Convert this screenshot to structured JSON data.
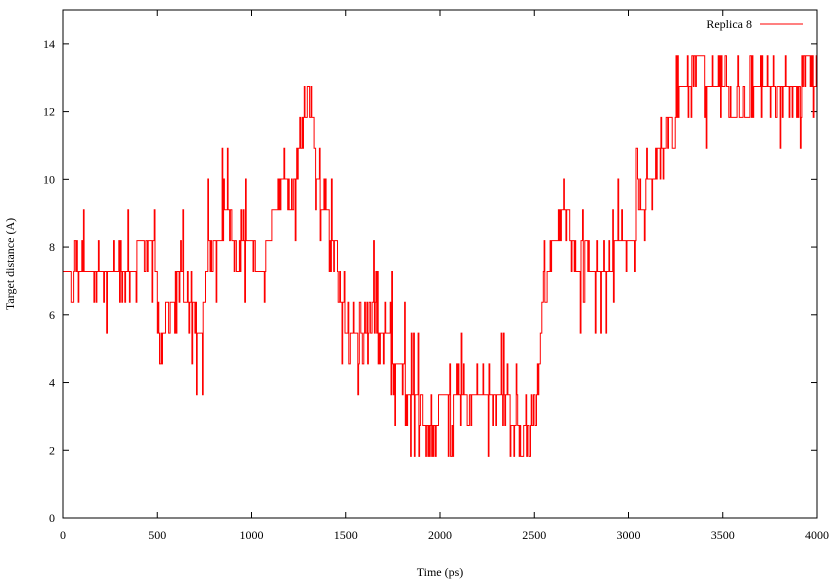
{
  "chart_data": {
    "type": "line",
    "xlabel": "Time (ps)",
    "ylabel": "Target distance (A)",
    "xlim": [
      0,
      4000
    ],
    "ylim": [
      0,
      15
    ],
    "xticks": [
      0,
      500,
      1000,
      1500,
      2000,
      2500,
      3000,
      3500,
      4000
    ],
    "yticks": [
      0,
      2,
      4,
      6,
      8,
      10,
      12,
      14
    ],
    "grid": false,
    "legend_position": "top-right",
    "series": [
      {
        "name": "Replica 8",
        "color": "#ff0000",
        "levels": [
          1.82,
          2.73,
          3.64,
          4.55,
          5.46,
          6.37,
          7.28,
          8.19,
          9.1,
          10.01,
          10.92,
          11.83,
          12.74,
          13.65
        ],
        "anchors": [
          [
            0,
            7.3
          ],
          [
            30,
            7.3
          ],
          [
            70,
            7.3
          ],
          [
            150,
            7.0
          ],
          [
            250,
            7.3
          ],
          [
            350,
            7.3
          ],
          [
            400,
            7.9
          ],
          [
            440,
            8.2
          ],
          [
            470,
            8.2
          ],
          [
            490,
            7.6
          ],
          [
            510,
            5.5
          ],
          [
            525,
            4.8
          ],
          [
            545,
            6.2
          ],
          [
            575,
            6.6
          ],
          [
            600,
            6.8
          ],
          [
            630,
            7.0
          ],
          [
            660,
            6.6
          ],
          [
            690,
            6.2
          ],
          [
            710,
            5.3
          ],
          [
            730,
            5.5
          ],
          [
            750,
            6.4
          ],
          [
            770,
            8.0
          ],
          [
            800,
            8.2
          ],
          [
            830,
            8.4
          ],
          [
            860,
            8.8
          ],
          [
            885,
            9.3
          ],
          [
            900,
            8.0
          ],
          [
            920,
            7.3
          ],
          [
            950,
            8.2
          ],
          [
            1000,
            8.2
          ],
          [
            1030,
            7.5
          ],
          [
            1060,
            7.3
          ],
          [
            1100,
            8.5
          ],
          [
            1140,
            9.6
          ],
          [
            1180,
            10.0
          ],
          [
            1210,
            9.2
          ],
          [
            1240,
            10.0
          ],
          [
            1270,
            11.2
          ],
          [
            1300,
            12.6
          ],
          [
            1320,
            11.6
          ],
          [
            1340,
            10.5
          ],
          [
            1360,
            9.6
          ],
          [
            1380,
            9.4
          ],
          [
            1400,
            9.0
          ],
          [
            1430,
            7.8
          ],
          [
            1450,
            7.4
          ],
          [
            1470,
            6.2
          ],
          [
            1490,
            5.5
          ],
          [
            1520,
            5.5
          ],
          [
            1560,
            5.8
          ],
          [
            1590,
            5.7
          ],
          [
            1620,
            5.8
          ],
          [
            1650,
            6.8
          ],
          [
            1680,
            5.4
          ],
          [
            1700,
            5.2
          ],
          [
            1740,
            5.0
          ],
          [
            1780,
            4.8
          ],
          [
            1820,
            4.0
          ],
          [
            1860,
            3.6
          ],
          [
            1900,
            3.0
          ],
          [
            1930,
            2.5
          ],
          [
            1960,
            2.3
          ],
          [
            1990,
            3.2
          ],
          [
            2020,
            3.4
          ],
          [
            2060,
            3.1
          ],
          [
            2100,
            3.6
          ],
          [
            2140,
            3.4
          ],
          [
            2180,
            3.3
          ],
          [
            2220,
            3.6
          ],
          [
            2260,
            3.4
          ],
          [
            2300,
            3.5
          ],
          [
            2340,
            3.7
          ],
          [
            2370,
            3.3
          ],
          [
            2400,
            2.6
          ],
          [
            2430,
            2.2
          ],
          [
            2460,
            2.4
          ],
          [
            2490,
            2.5
          ],
          [
            2510,
            3.0
          ],
          [
            2540,
            6.0
          ],
          [
            2570,
            6.9
          ],
          [
            2600,
            7.9
          ],
          [
            2640,
            8.6
          ],
          [
            2670,
            9.4
          ],
          [
            2700,
            8.0
          ],
          [
            2730,
            7.6
          ],
          [
            2760,
            8.0
          ],
          [
            2800,
            7.5
          ],
          [
            2850,
            7.3
          ],
          [
            2900,
            7.6
          ],
          [
            2950,
            8.0
          ],
          [
            3000,
            8.2
          ],
          [
            3050,
            8.7
          ],
          [
            3100,
            9.6
          ],
          [
            3150,
            10.5
          ],
          [
            3200,
            11.4
          ],
          [
            3250,
            12.1
          ],
          [
            3300,
            13.0
          ],
          [
            3350,
            13.3
          ],
          [
            3400,
            13.2
          ],
          [
            3450,
            13.0
          ],
          [
            3500,
            12.7
          ],
          [
            3550,
            12.0
          ],
          [
            3600,
            11.7
          ],
          [
            3650,
            12.2
          ],
          [
            3700,
            12.6
          ],
          [
            3750,
            13.2
          ],
          [
            3800,
            13.0
          ],
          [
            3850,
            12.9
          ],
          [
            3900,
            13.1
          ],
          [
            3950,
            13.4
          ],
          [
            3995,
            12.6
          ]
        ],
        "noise_seed": 8
      }
    ]
  }
}
